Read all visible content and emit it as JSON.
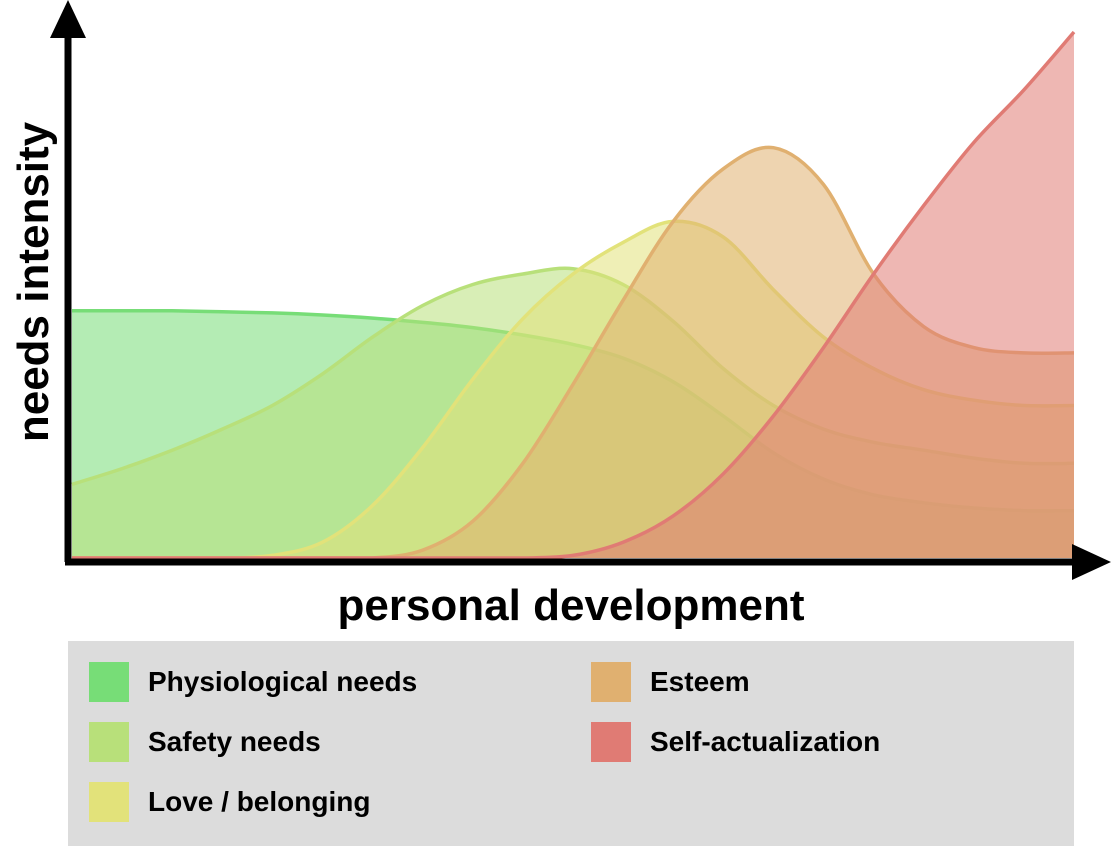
{
  "chart_data": {
    "type": "area",
    "xlabel": "personal development",
    "ylabel": "needs intensity",
    "x_ticks": false,
    "y_ticks": false,
    "grid": false,
    "legend_position": "bottom",
    "xlim": [
      0,
      100
    ],
    "ylim": [
      0,
      100
    ],
    "x": [
      0,
      5,
      10,
      15,
      20,
      25,
      30,
      35,
      40,
      45,
      50,
      55,
      60,
      65,
      70,
      75,
      80,
      85,
      90,
      95,
      100
    ],
    "series": [
      {
        "name": "Physiological needs",
        "color": "#77dd77",
        "values": [
          47,
          47,
          47,
          46.8,
          46.6,
          46.2,
          45.6,
          44.8,
          43.8,
          42.4,
          40.6,
          38,
          33.5,
          27,
          20,
          15,
          12,
          10.5,
          9.5,
          9,
          9
        ]
      },
      {
        "name": "Safety needs",
        "color": "#b8e07a",
        "values": [
          14,
          17,
          20.5,
          24.5,
          29,
          35,
          42,
          48,
          52,
          54,
          55,
          52,
          45,
          36,
          29,
          24.5,
          22,
          20.5,
          19,
          18,
          18
        ]
      },
      {
        "name": "Love / belonging",
        "color": "#e2e27a",
        "values": [
          0,
          0,
          0,
          0,
          0.5,
          3,
          10,
          21,
          34,
          45.5,
          54,
          60,
          64,
          61,
          51,
          42,
          36,
          32,
          30,
          29,
          29
        ]
      },
      {
        "name": "Esteem",
        "color": "#e0b070",
        "values": [
          0,
          0,
          0,
          0,
          0,
          0,
          0,
          1.5,
          7,
          18,
          33,
          49,
          64,
          74,
          78,
          71,
          54,
          44,
          40,
          39,
          39
        ]
      },
      {
        "name": "Self-actualization",
        "color": "#e07b74",
        "values": [
          0,
          0,
          0,
          0,
          0,
          0,
          0,
          0,
          0,
          0,
          0.5,
          3,
          8,
          16,
          27,
          40,
          54,
          67,
          79,
          89,
          100
        ]
      }
    ]
  },
  "legend": {
    "items": [
      {
        "label": "Physiological needs",
        "color": "#77dd77"
      },
      {
        "label": "Esteem",
        "color": "#e0b070"
      },
      {
        "label": "Safety needs",
        "color": "#b8e07a"
      },
      {
        "label": "Self-actualization",
        "color": "#e07b74"
      },
      {
        "label": "Love / belonging",
        "color": "#e2e27a"
      }
    ]
  }
}
